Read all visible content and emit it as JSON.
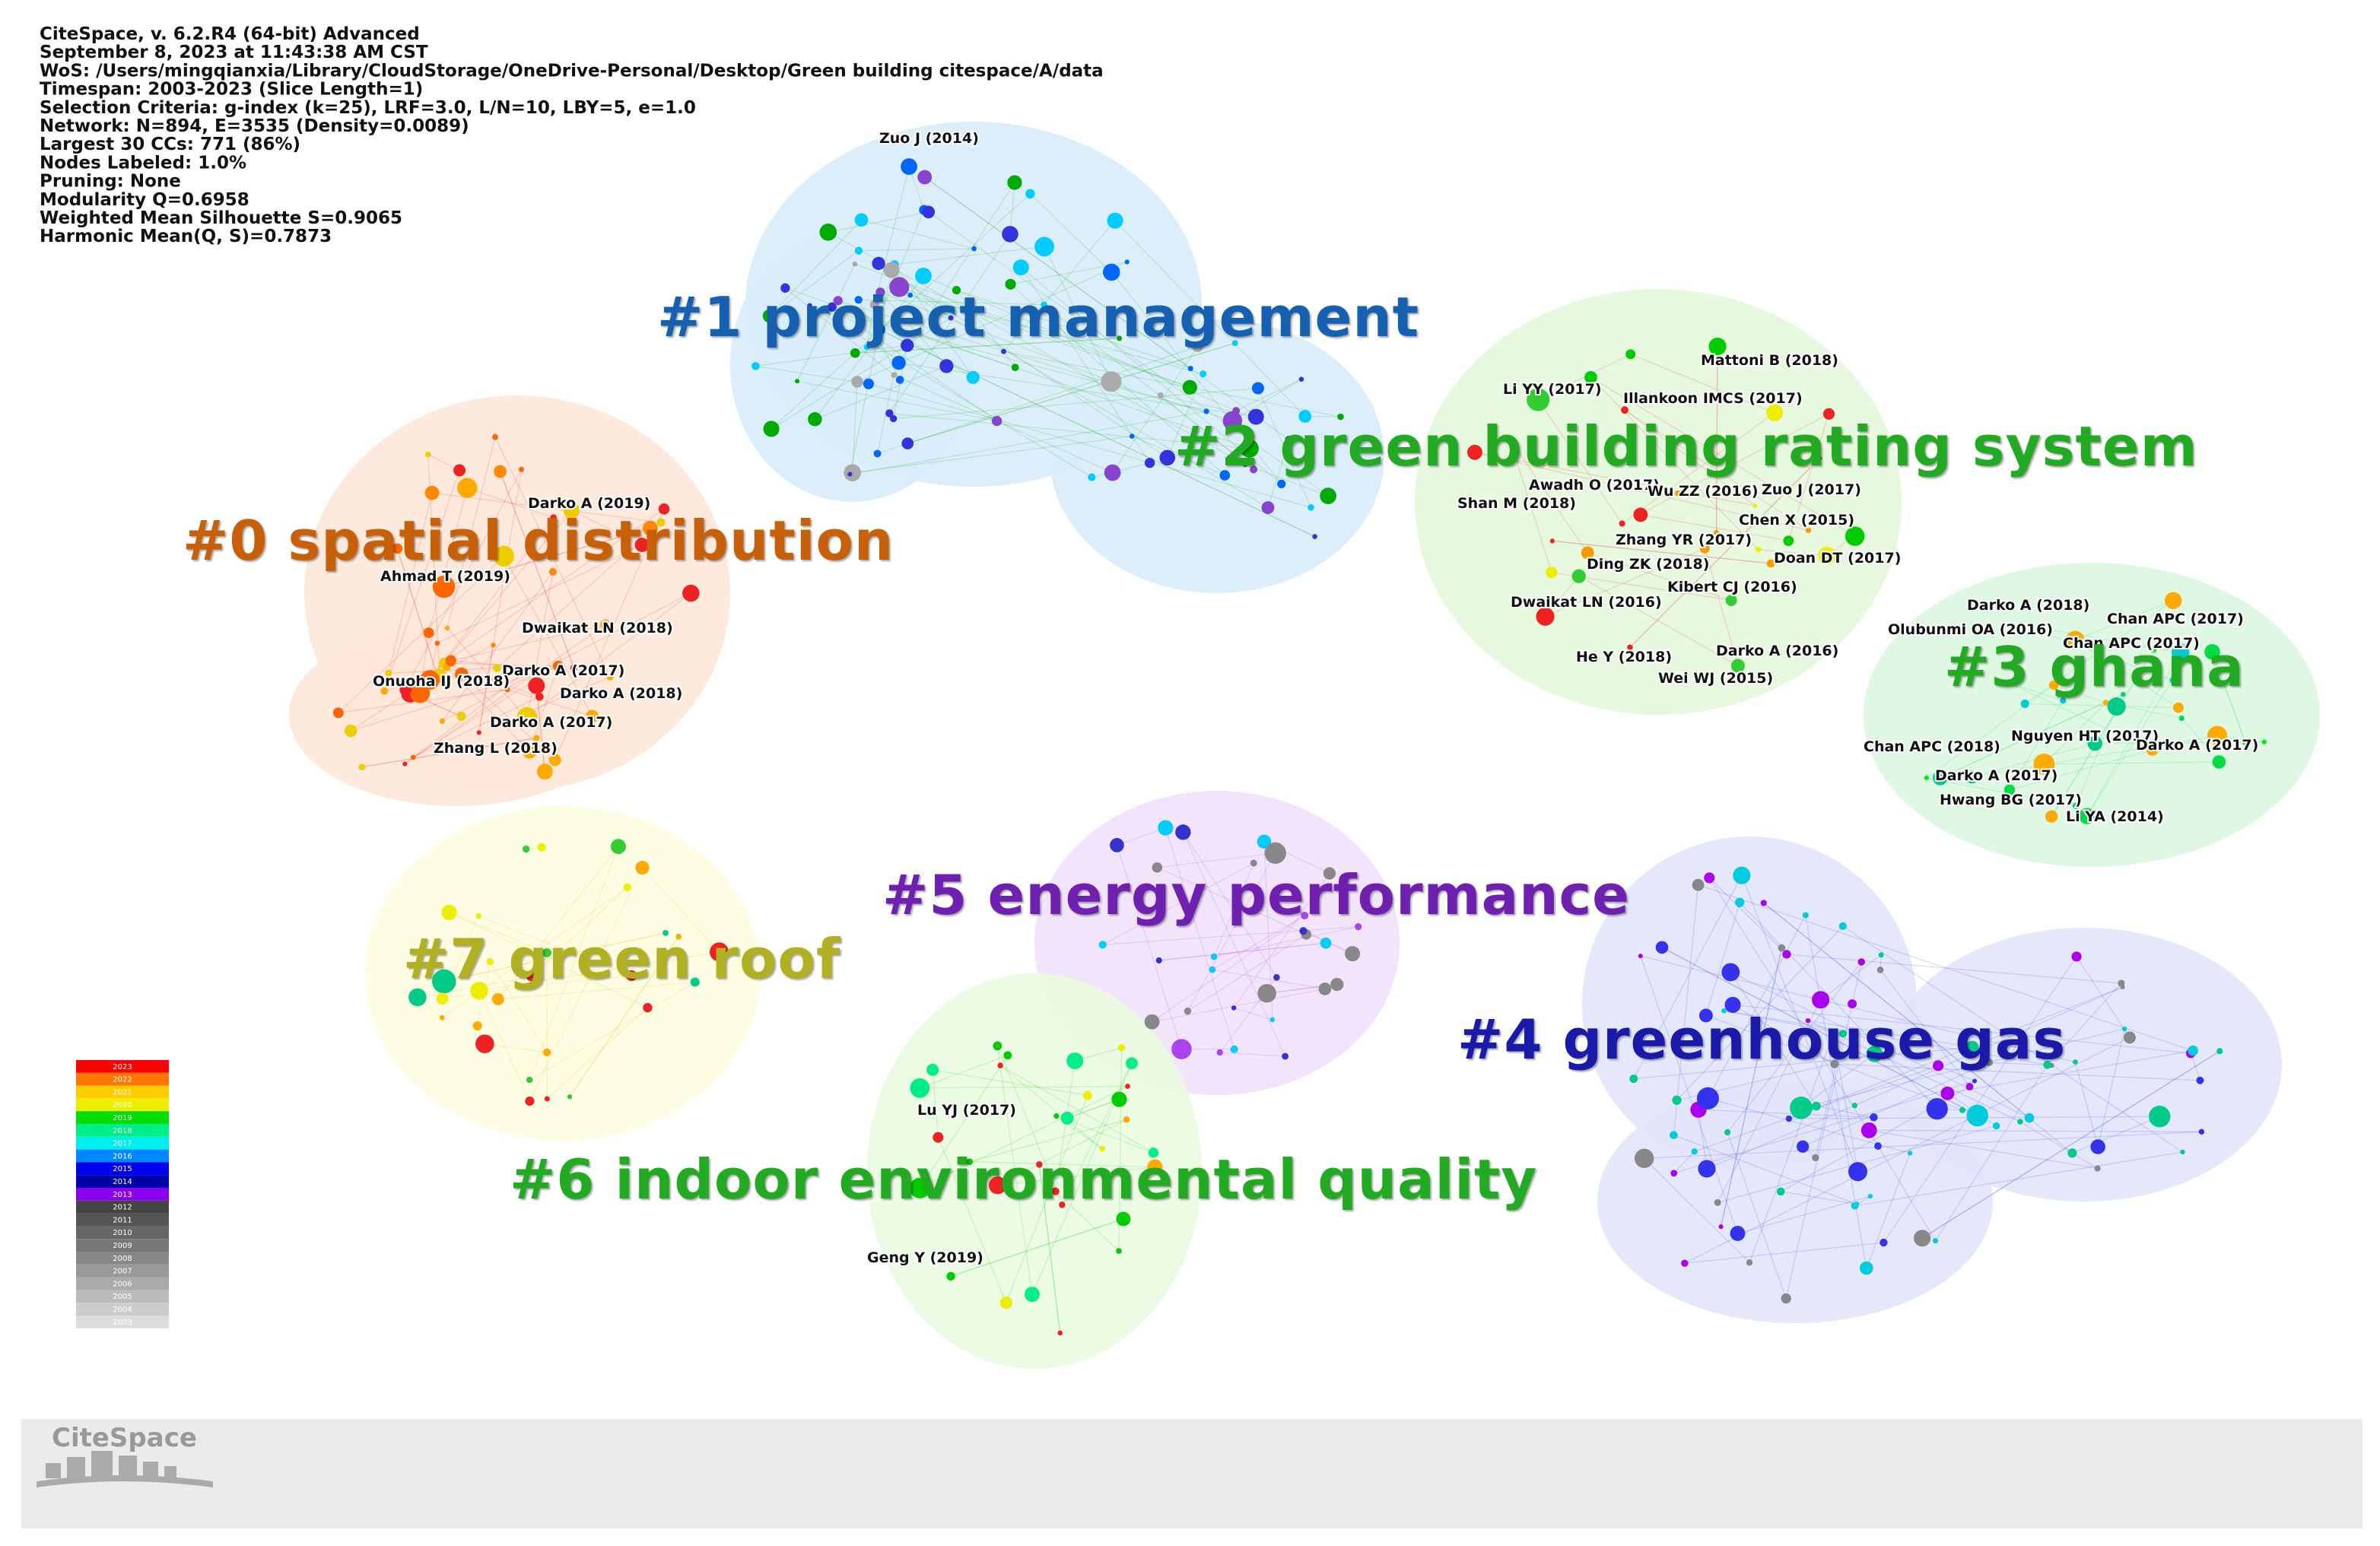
{
  "header": {
    "lines": [
      "CiteSpace, v. 6.2.R4 (64-bit) Advanced",
      "September 8, 2023 at 11:43:38 AM CST",
      "WoS: /Users/mingqianxia/Library/CloudStorage/OneDrive-Personal/Desktop/Green building citespace/A/data",
      "Timespan: 2003-2023 (Slice Length=1)",
      "Selection Criteria: g-index (k=25), LRF=3.0, L/N=10, LBY=5, e=1.0",
      "Network: N=894, E=3535 (Density=0.0089)",
      "Largest 30 CCs: 771 (86%)",
      "Nodes Labeled: 1.0%",
      "Pruning: None",
      "Modularity Q=0.6958",
      "Weighted Mean Silhouette S=0.9065",
      "Harmonic Mean(Q, S)=0.7873"
    ]
  },
  "clusters": [
    {
      "label": "#0 spatial distribution"
    },
    {
      "label": "#1 project management"
    },
    {
      "label": "#2 green building rating system"
    },
    {
      "label": "#3 ghana"
    },
    {
      "label": "#4 greenhouse gas"
    },
    {
      "label": "#5 energy performance"
    },
    {
      "label": "#6 indoor environmental quality"
    },
    {
      "label": "#7 green roof"
    }
  ],
  "node_labels": [
    "Zuo J (2014)",
    "Darko A (2019)",
    "Ahmad T (2019)",
    "Dwaikat LN (2018)",
    "Darko A (2017)",
    "Onuoha IJ (2018)",
    "Darko A (2018)",
    "Darko A (2017)",
    "Zhang L (2018)",
    "Mattoni B (2018)",
    "Li YY (2017)",
    "Illankoon IMCS (2017)",
    "Awadh O (2017)",
    "Wu ZZ (2016)",
    "Zuo J (2017)",
    "Shan M (2018)",
    "Chen X (2015)",
    "Zhang YR (2017)",
    "Ding ZK (2018)",
    "Doan DT (2017)",
    "Kibert CJ (2016)",
    "Dwaikat LN (2016)",
    "He Y (2018)",
    "Darko A (2016)",
    "Wei WJ (2015)",
    "Darko A (2018)",
    "Chan APC (2017)",
    "Olubunmi OA (2016)",
    "Chan APC (2017)",
    "Chan APC (2018)",
    "Nguyen HT (2017)",
    "Darko A (2017)",
    "Darko A (2017)",
    "Hwang BG (2017)",
    "Li YA (2014)",
    "Lu YJ (2017)",
    "Geng Y (2019)"
  ],
  "legend": {
    "years": [
      "2023",
      "2022",
      "2021",
      "2020",
      "2019",
      "2018",
      "2017",
      "2016",
      "2015",
      "2014",
      "2013",
      "2012",
      "2011",
      "2010",
      "2009",
      "2008",
      "2007",
      "2006",
      "2005",
      "2004",
      "2003"
    ]
  },
  "footer": {
    "logo": "CiteSpace"
  }
}
